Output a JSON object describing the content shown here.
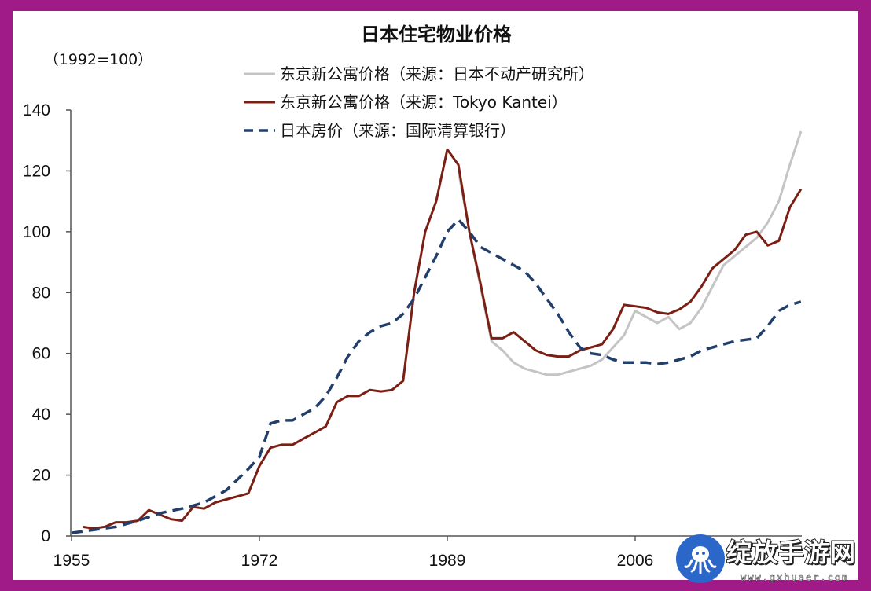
{
  "chart_data": {
    "type": "line",
    "title": "日本住宅物业价格",
    "unit_label": "（1992=100）",
    "y_ticks": [
      "0",
      "20",
      "40",
      "60",
      "80",
      "100",
      "120",
      "140"
    ],
    "x_ticks": [
      "1955",
      "1972",
      "1989",
      "2006"
    ],
    "ylim": [
      0,
      140
    ],
    "xlim": [
      1955,
      2022
    ],
    "legend_position": "top-center",
    "grid": false,
    "series": [
      {
        "name": "东京新公寓价格（来源：日本不动产研究所）",
        "color": "#c4c4c4",
        "dash": "solid",
        "points": [
          [
            1990,
            120
          ],
          [
            1991,
            100
          ],
          [
            1992,
            82
          ],
          [
            1993,
            64
          ],
          [
            1994,
            61
          ],
          [
            1995,
            57
          ],
          [
            1996,
            55
          ],
          [
            1997,
            54
          ],
          [
            1998,
            53
          ],
          [
            1999,
            53
          ],
          [
            2000,
            54
          ],
          [
            2001,
            55
          ],
          [
            2002,
            56
          ],
          [
            2003,
            58
          ],
          [
            2004,
            62
          ],
          [
            2005,
            66
          ],
          [
            2006,
            74
          ],
          [
            2007,
            72
          ],
          [
            2008,
            70
          ],
          [
            2009,
            72
          ],
          [
            2010,
            68
          ],
          [
            2011,
            70
          ],
          [
            2012,
            75
          ],
          [
            2013,
            82
          ],
          [
            2014,
            89
          ],
          [
            2015,
            92
          ],
          [
            2016,
            95
          ],
          [
            2017,
            98
          ],
          [
            2018,
            103
          ],
          [
            2019,
            110
          ],
          [
            2020,
            122
          ],
          [
            2021,
            133
          ]
        ]
      },
      {
        "name": "东京新公寓价格（来源：Tokyo Kantei）",
        "color": "#7a1f14",
        "dash": "solid",
        "points": [
          [
            1956,
            3
          ],
          [
            1957,
            2.5
          ],
          [
            1958,
            3
          ],
          [
            1959,
            4.5
          ],
          [
            1960,
            4.5
          ],
          [
            1961,
            5
          ],
          [
            1962,
            8.5
          ],
          [
            1963,
            7
          ],
          [
            1964,
            5.5
          ],
          [
            1965,
            5
          ],
          [
            1966,
            9.5
          ],
          [
            1967,
            9
          ],
          [
            1968,
            11
          ],
          [
            1969,
            12
          ],
          [
            1970,
            13
          ],
          [
            1971,
            14
          ],
          [
            1972,
            23
          ],
          [
            1973,
            29
          ],
          [
            1974,
            30
          ],
          [
            1975,
            30
          ],
          [
            1976,
            32
          ],
          [
            1977,
            34
          ],
          [
            1978,
            36
          ],
          [
            1979,
            44
          ],
          [
            1980,
            46
          ],
          [
            1981,
            46
          ],
          [
            1982,
            48
          ],
          [
            1983,
            47.5
          ],
          [
            1984,
            48
          ],
          [
            1985,
            51
          ],
          [
            1986,
            80
          ],
          [
            1987,
            100
          ],
          [
            1988,
            110
          ],
          [
            1989,
            127
          ],
          [
            1990,
            122
          ],
          [
            1991,
            100
          ],
          [
            1992,
            83
          ],
          [
            1993,
            65
          ],
          [
            1994,
            65
          ],
          [
            1995,
            67
          ],
          [
            1996,
            64
          ],
          [
            1997,
            61
          ],
          [
            1998,
            59.5
          ],
          [
            1999,
            59
          ],
          [
            2000,
            59
          ],
          [
            2001,
            61
          ],
          [
            2002,
            62
          ],
          [
            2003,
            63
          ],
          [
            2004,
            68
          ],
          [
            2005,
            76
          ],
          [
            2006,
            75.5
          ],
          [
            2007,
            75
          ],
          [
            2008,
            73.5
          ],
          [
            2009,
            73
          ],
          [
            2010,
            74.5
          ],
          [
            2011,
            77
          ],
          [
            2012,
            82
          ],
          [
            2013,
            88
          ],
          [
            2014,
            91
          ],
          [
            2015,
            94
          ],
          [
            2016,
            99
          ],
          [
            2017,
            100
          ],
          [
            2018,
            95.5
          ],
          [
            2019,
            97
          ],
          [
            2020,
            108
          ],
          [
            2021,
            114
          ]
        ]
      },
      {
        "name": "日本房价（来源：国际清算银行）",
        "color": "#223f6b",
        "dash": "dashed",
        "points": [
          [
            1955,
            1
          ],
          [
            1957,
            2
          ],
          [
            1959,
            3
          ],
          [
            1961,
            5
          ],
          [
            1963,
            7.5
          ],
          [
            1965,
            9
          ],
          [
            1967,
            11
          ],
          [
            1969,
            15
          ],
          [
            1971,
            22
          ],
          [
            1972,
            26
          ],
          [
            1973,
            37
          ],
          [
            1974,
            38
          ],
          [
            1975,
            38
          ],
          [
            1976,
            40
          ],
          [
            1977,
            42
          ],
          [
            1978,
            46
          ],
          [
            1979,
            52
          ],
          [
            1980,
            59
          ],
          [
            1981,
            64
          ],
          [
            1982,
            67
          ],
          [
            1983,
            69
          ],
          [
            1984,
            70
          ],
          [
            1985,
            73
          ],
          [
            1986,
            78
          ],
          [
            1987,
            85
          ],
          [
            1988,
            92
          ],
          [
            1989,
            100
          ],
          [
            1990,
            104
          ],
          [
            1991,
            100
          ],
          [
            1992,
            95
          ],
          [
            1993,
            93
          ],
          [
            1994,
            91
          ],
          [
            1995,
            89
          ],
          [
            1996,
            87
          ],
          [
            1997,
            83
          ],
          [
            1998,
            78
          ],
          [
            1999,
            73
          ],
          [
            2000,
            67
          ],
          [
            2001,
            62
          ],
          [
            2002,
            60
          ],
          [
            2003,
            59.5
          ],
          [
            2004,
            58
          ],
          [
            2005,
            57
          ],
          [
            2006,
            57
          ],
          [
            2007,
            57
          ],
          [
            2008,
            56.5
          ],
          [
            2009,
            57
          ],
          [
            2010,
            58
          ],
          [
            2011,
            59
          ],
          [
            2012,
            61
          ],
          [
            2013,
            62
          ],
          [
            2014,
            63
          ],
          [
            2015,
            64
          ],
          [
            2016,
            64.5
          ],
          [
            2017,
            65
          ],
          [
            2018,
            69
          ],
          [
            2019,
            74
          ],
          [
            2020,
            76
          ],
          [
            2021,
            77
          ]
        ]
      }
    ]
  },
  "watermark": {
    "name": "绽放手游网",
    "url": "www.gxhuaer.com"
  }
}
